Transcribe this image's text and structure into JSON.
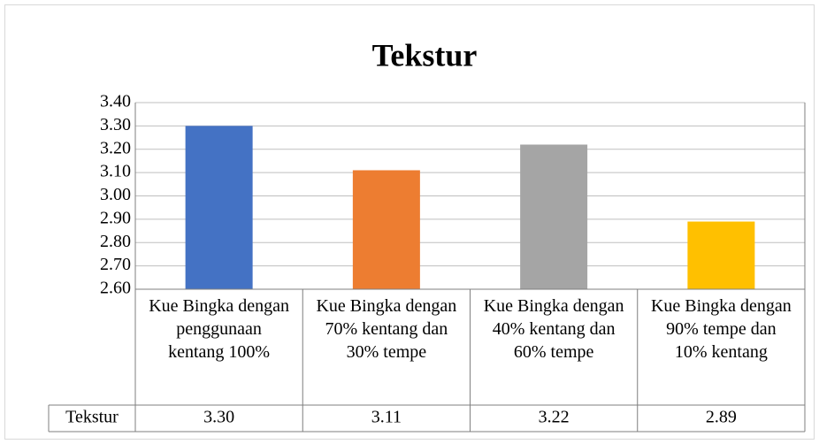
{
  "chart_data": {
    "type": "bar",
    "title": "Tekstur",
    "categories": [
      "Kue Bingka dengan penggunaan kentang 100%",
      "Kue Bingka dengan 70% kentang dan 30% tempe",
      "Kue Bingka dengan 40% kentang dan 60% tempe",
      "Kue Bingka dengan 90% tempe dan 10% kentang"
    ],
    "series": [
      {
        "name": "Tekstur",
        "colors": [
          "#4472c4",
          "#ed7d31",
          "#a5a5a5",
          "#ffc000"
        ],
        "values": [
          3.3,
          3.11,
          3.22,
          2.89
        ],
        "value_labels": [
          "3.30",
          "3.11",
          "3.22",
          "2.89"
        ]
      }
    ],
    "ylim": [
      2.6,
      3.4
    ],
    "yticks": [
      {
        "value": 2.6,
        "label": "2.60"
      },
      {
        "value": 2.7,
        "label": "2.70"
      },
      {
        "value": 2.8,
        "label": "2.80"
      },
      {
        "value": 2.9,
        "label": "2.90"
      },
      {
        "value": 3.0,
        "label": "3.00"
      },
      {
        "value": 3.1,
        "label": "3.10"
      },
      {
        "value": 3.2,
        "label": "3.20"
      },
      {
        "value": 3.3,
        "label": "3.30"
      },
      {
        "value": 3.4,
        "label": "3.40"
      }
    ],
    "grid": true
  }
}
